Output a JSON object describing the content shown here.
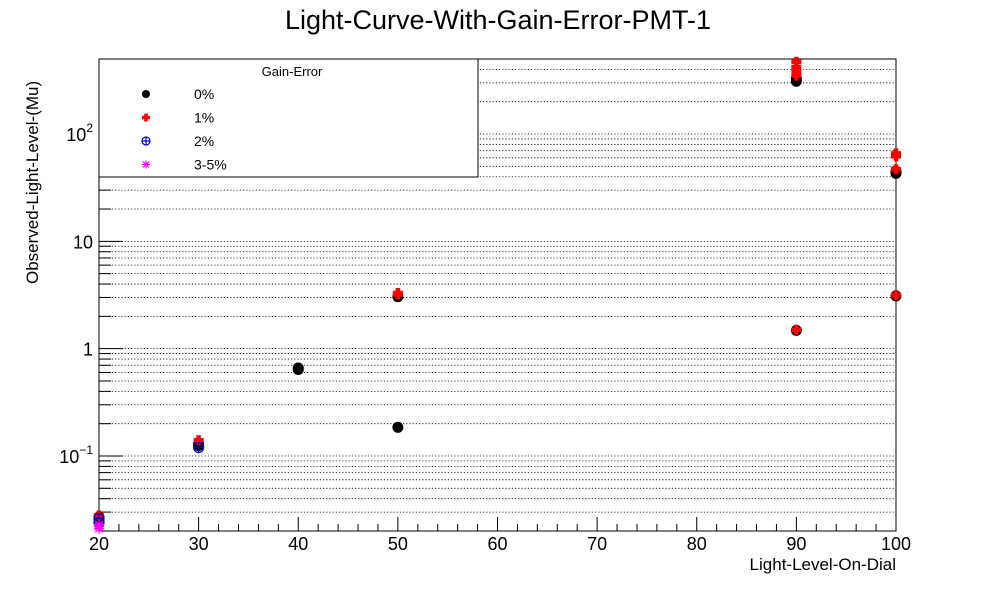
{
  "chart_data": {
    "type": "scatter",
    "title": "Light-Curve-With-Gain-Error-PMT-1",
    "xlabel": "Light-Level-On-Dial",
    "ylabel": "Observed-Light-Level-(Mu)",
    "xlim": [
      20,
      100
    ],
    "ylim": [
      0.02,
      500
    ],
    "y_scale": "log",
    "grid": "y-dotted",
    "x_ticks": [
      20,
      30,
      40,
      50,
      60,
      70,
      80,
      90,
      100
    ],
    "y_ticks": [
      {
        "value": 0.1,
        "base": "10",
        "exp": "−1"
      },
      {
        "value": 1,
        "base": "1",
        "exp": ""
      },
      {
        "value": 10,
        "base": "10",
        "exp": ""
      },
      {
        "value": 100,
        "base": "10",
        "exp": "2"
      }
    ],
    "legend": {
      "title": "Gain-Error",
      "placement": "top-left"
    },
    "series": [
      {
        "name": "0%",
        "color": "#000000",
        "marker": "dot",
        "points": [
          {
            "x": 20,
            "y": 0.027
          },
          {
            "x": 20,
            "y": 0.025
          },
          {
            "x": 30,
            "y": 0.13
          },
          {
            "x": 30,
            "y": 0.125
          },
          {
            "x": 40,
            "y": 0.66
          },
          {
            "x": 40,
            "y": 0.64
          },
          {
            "x": 50,
            "y": 3.05
          },
          {
            "x": 50,
            "y": 0.185
          },
          {
            "x": 90,
            "y": 330
          },
          {
            "x": 90,
            "y": 310
          },
          {
            "x": 90,
            "y": 1.48
          },
          {
            "x": 100,
            "y": 43
          },
          {
            "x": 100,
            "y": 45
          },
          {
            "x": 100,
            "y": 3.1
          }
        ]
      },
      {
        "name": "1%",
        "color": "#ff0000",
        "marker": "cross",
        "points": [
          {
            "x": 20,
            "y": 0.028
          },
          {
            "x": 30,
            "y": 0.14
          },
          {
            "x": 50,
            "y": 3.3
          },
          {
            "x": 50,
            "y": 3.2
          },
          {
            "x": 90,
            "y": 470
          },
          {
            "x": 90,
            "y": 420
          },
          {
            "x": 90,
            "y": 380
          },
          {
            "x": 90,
            "y": 350
          },
          {
            "x": 90,
            "y": 1.5
          },
          {
            "x": 100,
            "y": 66
          },
          {
            "x": 100,
            "y": 62
          },
          {
            "x": 100,
            "y": 47
          },
          {
            "x": 100,
            "y": 3.15
          }
        ]
      },
      {
        "name": "2%",
        "color": "#0000cc",
        "marker": "circle-plus",
        "points": [
          {
            "x": 20,
            "y": 0.026
          },
          {
            "x": 20,
            "y": 0.024
          },
          {
            "x": 30,
            "y": 0.12
          }
        ]
      },
      {
        "name": "3-5%",
        "color": "#ff00ff",
        "marker": "star",
        "points": [
          {
            "x": 20,
            "y": 0.023
          },
          {
            "x": 20,
            "y": 0.022
          },
          {
            "x": 20,
            "y": 0.021
          }
        ]
      }
    ]
  }
}
